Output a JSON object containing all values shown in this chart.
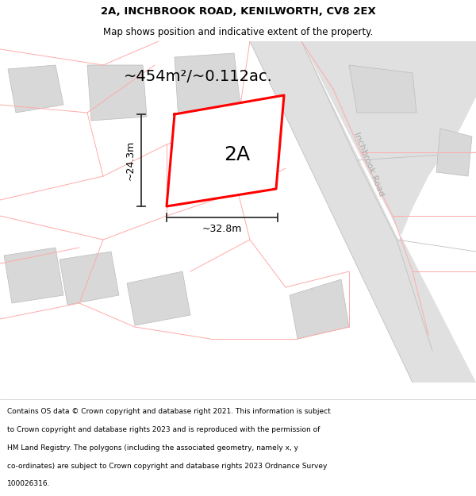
{
  "title_line1": "2A, INCHBROOK ROAD, KENILWORTH, CV8 2EX",
  "title_line2": "Map shows position and indicative extent of the property.",
  "area_text": "~454m²/~0.112ac.",
  "label_2a": "2A",
  "width_label": "~32.8m",
  "height_label": "~24.3m",
  "road_label": "Inchbrook Road",
  "footer_lines": [
    "Contains OS data © Crown copyright and database right 2021. This information is subject",
    "to Crown copyright and database rights 2023 and is reproduced with the permission of",
    "HM Land Registry. The polygons (including the associated geometry, namely x, y",
    "co-ordinates) are subject to Crown copyright and database rights 2023 Ordnance Survey",
    "100026316."
  ],
  "plot_outline_color": "#ff0000",
  "dim_line_color": "#333333",
  "pink_line_color": "#ffaaaa",
  "gray_block_color": "#d8d8d8",
  "gray_block_edge": "#bbbbbb",
  "road_strip_color": "#e8e8e8",
  "road_label_color": "#aaaaaa",
  "title_fontsize": 9.5,
  "subtitle_fontsize": 8.5,
  "area_fontsize": 14,
  "label_2a_fontsize": 18,
  "dim_fontsize": 9,
  "road_label_fontsize": 8,
  "footer_fontsize": 6.5
}
